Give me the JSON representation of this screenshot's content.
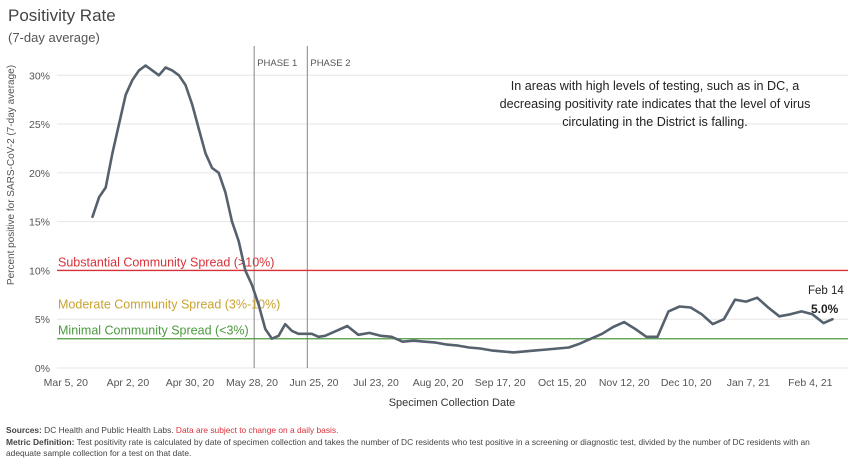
{
  "title": "Positivity Rate",
  "subtitle": "(7-day average)",
  "chart_data": {
    "type": "line",
    "ylabel": "Percent positive for SARS-CoV-2 (7-day average)",
    "xlabel": "Specimen Collection Date",
    "ylim": [
      0,
      33
    ],
    "xlim": [
      "2020-03-01",
      "2021-02-21"
    ],
    "yticks": [
      0,
      5,
      10,
      15,
      20,
      25,
      30
    ],
    "ytick_labels": [
      "0%",
      "5%",
      "10%",
      "15%",
      "20%",
      "25%",
      "30%"
    ],
    "xticks": [
      "2020-03-05",
      "2020-04-02",
      "2020-04-30",
      "2020-05-28",
      "2020-06-25",
      "2020-07-23",
      "2020-08-20",
      "2020-09-17",
      "2020-10-15",
      "2020-11-12",
      "2020-12-10",
      "2021-01-07",
      "2021-02-04"
    ],
    "xtick_labels": [
      "Mar 5, 20",
      "Apr 2, 20",
      "Apr 30, 20",
      "May 28, 20",
      "Jun 25, 20",
      "Jul 23, 20",
      "Aug 20, 20",
      "Sep 17, 20",
      "Oct 15, 20",
      "Nov 12, 20",
      "Dec 10, 20",
      "Jan 7, 21",
      "Feb 4, 21"
    ],
    "grid": "horizontal",
    "line_color": "#56616e",
    "series": [
      {
        "x": [
          "2020-03-17",
          "2020-03-20",
          "2020-03-23",
          "2020-03-26",
          "2020-03-29",
          "2020-04-01",
          "2020-04-04",
          "2020-04-07",
          "2020-04-10",
          "2020-04-13",
          "2020-04-16",
          "2020-04-19",
          "2020-04-22",
          "2020-04-25",
          "2020-04-28",
          "2020-05-01",
          "2020-05-04",
          "2020-05-07",
          "2020-05-10",
          "2020-05-13",
          "2020-05-16",
          "2020-05-19",
          "2020-05-22",
          "2020-05-25",
          "2020-05-28",
          "2020-05-31",
          "2020-06-03",
          "2020-06-06",
          "2020-06-09",
          "2020-06-12",
          "2020-06-15",
          "2020-06-18",
          "2020-06-21",
          "2020-06-24",
          "2020-06-27",
          "2020-06-30",
          "2020-07-05",
          "2020-07-10",
          "2020-07-15",
          "2020-07-20",
          "2020-07-25",
          "2020-07-30",
          "2020-08-04",
          "2020-08-09",
          "2020-08-14",
          "2020-08-19",
          "2020-08-24",
          "2020-08-29",
          "2020-09-03",
          "2020-09-08",
          "2020-09-13",
          "2020-09-18",
          "2020-09-23",
          "2020-09-28",
          "2020-10-03",
          "2020-10-08",
          "2020-10-13",
          "2020-10-18",
          "2020-10-23",
          "2020-10-28",
          "2020-11-02",
          "2020-11-07",
          "2020-11-12",
          "2020-11-17",
          "2020-11-22",
          "2020-11-27",
          "2020-12-02",
          "2020-12-07",
          "2020-12-12",
          "2020-12-17",
          "2020-12-22",
          "2020-12-27",
          "2021-01-01",
          "2021-01-06",
          "2021-01-11",
          "2021-01-16",
          "2021-01-21",
          "2021-01-26",
          "2021-01-31",
          "2021-02-05",
          "2021-02-10",
          "2021-02-14"
        ],
        "y": [
          15.5,
          17.5,
          18.5,
          22,
          25,
          28,
          29.5,
          30.5,
          31,
          30.5,
          30,
          30.8,
          30.5,
          30,
          29,
          27,
          24.5,
          22,
          20.5,
          20,
          18,
          15,
          13,
          10,
          8.5,
          6.5,
          4,
          3,
          3.3,
          4.5,
          3.8,
          3.5,
          3.5,
          3.5,
          3.2,
          3.3,
          3.8,
          4.3,
          3.4,
          3.6,
          3.3,
          3.2,
          2.7,
          2.8,
          2.7,
          2.6,
          2.4,
          2.3,
          2.1,
          2,
          1.8,
          1.7,
          1.6,
          1.7,
          1.8,
          1.9,
          2,
          2.1,
          2.5,
          3,
          3.5,
          4.2,
          4.7,
          4,
          3.2,
          3.2,
          5.8,
          6.3,
          6.2,
          5.5,
          4.5,
          5,
          7,
          6.8,
          7.2,
          6.2,
          5.3,
          5.5,
          5.8,
          5.5,
          4.6,
          5.0
        ]
      }
    ],
    "phases": [
      {
        "label": "PHASE 1",
        "x": "2020-05-29"
      },
      {
        "label": "PHASE 2",
        "x": "2020-06-22"
      }
    ],
    "thresholds": [
      {
        "label": "Substantial Community Spread (>10%)",
        "y": 10,
        "color": "#d7313a"
      },
      {
        "label": "Moderate Community Spread (3%-10%)",
        "y": null,
        "color": "#c9a230"
      },
      {
        "label": "Minimal Community Spread (<3%)",
        "y": 3,
        "color": "#4b9a3e"
      }
    ],
    "annotation": "In areas with high levels of testing, such as in DC, a decreasing positivity rate indicates that the level of virus circulating in the District is falling.",
    "end_label_date": "Feb 14",
    "end_label_value": "5.0%"
  },
  "footer": {
    "sources_label": "Sources:",
    "sources_text": " DC Health and Public Health Labs. ",
    "sources_note": "Data are subject to change on a daily basis.",
    "metric_label": "Metric Definition:",
    "metric_text": " Test positivity rate is calculated by date of specimen collection and takes the number of DC residents who test positive in a screening or diagnostic test, divided by the number of DC residents with an adequate sample collection for a test on that date."
  }
}
